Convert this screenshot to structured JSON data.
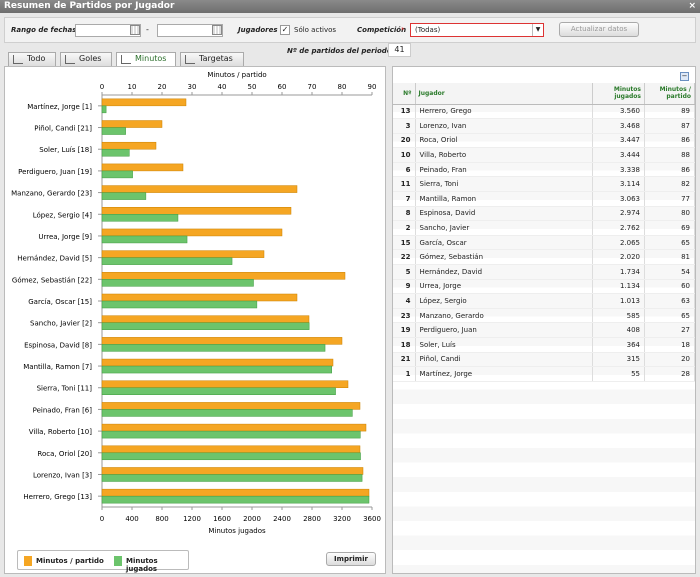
{
  "window": {
    "title": "Resumen de Partidos por Jugador",
    "close": "×"
  },
  "filters": {
    "rango_label": "Rango de fechas",
    "date_sep": "-",
    "jugadores_label": "Jugadores",
    "solo_activos_checked": "✓",
    "solo_activos_label": "Sólo activos",
    "competicion_label": "Competición",
    "competicion_required": "*",
    "competicion_value": "(Todas)",
    "actualizar_label": "Actualizar datos",
    "num_partidos_label": "Nº de partidos del periodo",
    "num_partidos_value": "41"
  },
  "tabs": [
    {
      "label": "Todo",
      "active": false
    },
    {
      "label": "Goles",
      "active": false
    },
    {
      "label": "Minutos",
      "active": true
    },
    {
      "label": "Targetas",
      "active": false
    }
  ],
  "chart_data": {
    "type": "bar",
    "orientation": "horizontal",
    "top_axis_label": "Minutos / partido",
    "bottom_axis_label": "Minutos jugados",
    "top_ticks": [
      "0",
      "10",
      "20",
      "30",
      "40",
      "50",
      "60",
      "70",
      "80",
      "90"
    ],
    "bottom_ticks": [
      "0",
      "400",
      "800",
      "1200",
      "1600",
      "2000",
      "2400",
      "2800",
      "3200",
      "3600"
    ],
    "top_lim": [
      0,
      90
    ],
    "bottom_lim": [
      0,
      3600
    ],
    "categories": [
      "Martínez, Jorge [1]",
      "Piñol, Candi [21]",
      "Soler, Luís [18]",
      "Perdiguero, Juan [19]",
      "Manzano, Gerardo [23]",
      "López, Sergio [4]",
      "Urrea, Jorge [9]",
      "Hernández, David [5]",
      "Gómez, Sebastián [22]",
      "García, Oscar [15]",
      "Sancho, Javier [2]",
      "Espinosa, David [8]",
      "Mantilla, Ramon [7]",
      "Sierra, Toni [11]",
      "Peinado, Fran [6]",
      "Villa, Roberto [10]",
      "Roca, Oriol [20]",
      "Lorenzo, Ivan [3]",
      "Herrero, Grego [13]"
    ],
    "series": [
      {
        "name": "Minutos / partido",
        "color": "#f5a623",
        "axis": "top",
        "values": [
          28,
          20,
          18,
          27,
          65,
          63,
          60,
          54,
          81,
          65,
          69,
          80,
          77,
          82,
          86,
          88,
          86,
          87,
          89
        ]
      },
      {
        "name": "Minutos jugados",
        "color": "#6cc46c",
        "axis": "bottom",
        "values": [
          55,
          315,
          364,
          408,
          585,
          1013,
          1134,
          1734,
          2020,
          2065,
          2762,
          2974,
          3063,
          3114,
          3338,
          3444,
          3447,
          3468,
          3560
        ]
      }
    ],
    "legend_position": "bottom-left",
    "grid": false
  },
  "legend": {
    "s1": "Minutos / partido",
    "s2": "Minutos jugados"
  },
  "print_label": "Imprimir",
  "table": {
    "headers": {
      "num": "Nº",
      "jugador": "Jugador",
      "min_jug": "Minutos jugados",
      "min_part": "Minutos / partido"
    },
    "rows": [
      [
        "13",
        "Herrero, Grego",
        "3.560",
        "89"
      ],
      [
        "3",
        "Lorenzo, Ivan",
        "3.468",
        "87"
      ],
      [
        "20",
        "Roca, Oriol",
        "3.447",
        "86"
      ],
      [
        "10",
        "Villa, Roberto",
        "3.444",
        "88"
      ],
      [
        "6",
        "Peinado, Fran",
        "3.338",
        "86"
      ],
      [
        "11",
        "Sierra, Toni",
        "3.114",
        "82"
      ],
      [
        "7",
        "Mantilla, Ramon",
        "3.063",
        "77"
      ],
      [
        "8",
        "Espinosa, David",
        "2.974",
        "80"
      ],
      [
        "2",
        "Sancho, Javier",
        "2.762",
        "69"
      ],
      [
        "15",
        "García, Oscar",
        "2.065",
        "65"
      ],
      [
        "22",
        "Gómez, Sebastián",
        "2.020",
        "81"
      ],
      [
        "5",
        "Hernández, David",
        "1.734",
        "54"
      ],
      [
        "9",
        "Urrea, Jorge",
        "1.134",
        "60"
      ],
      [
        "4",
        "López, Sergio",
        "1.013",
        "63"
      ],
      [
        "23",
        "Manzano, Gerardo",
        "585",
        "65"
      ],
      [
        "19",
        "Perdiguero, Juan",
        "408",
        "27"
      ],
      [
        "18",
        "Soler, Luís",
        "364",
        "18"
      ],
      [
        "21",
        "Piñol, Candi",
        "315",
        "20"
      ],
      [
        "1",
        "Martínez, Jorge",
        "55",
        "28"
      ]
    ]
  }
}
